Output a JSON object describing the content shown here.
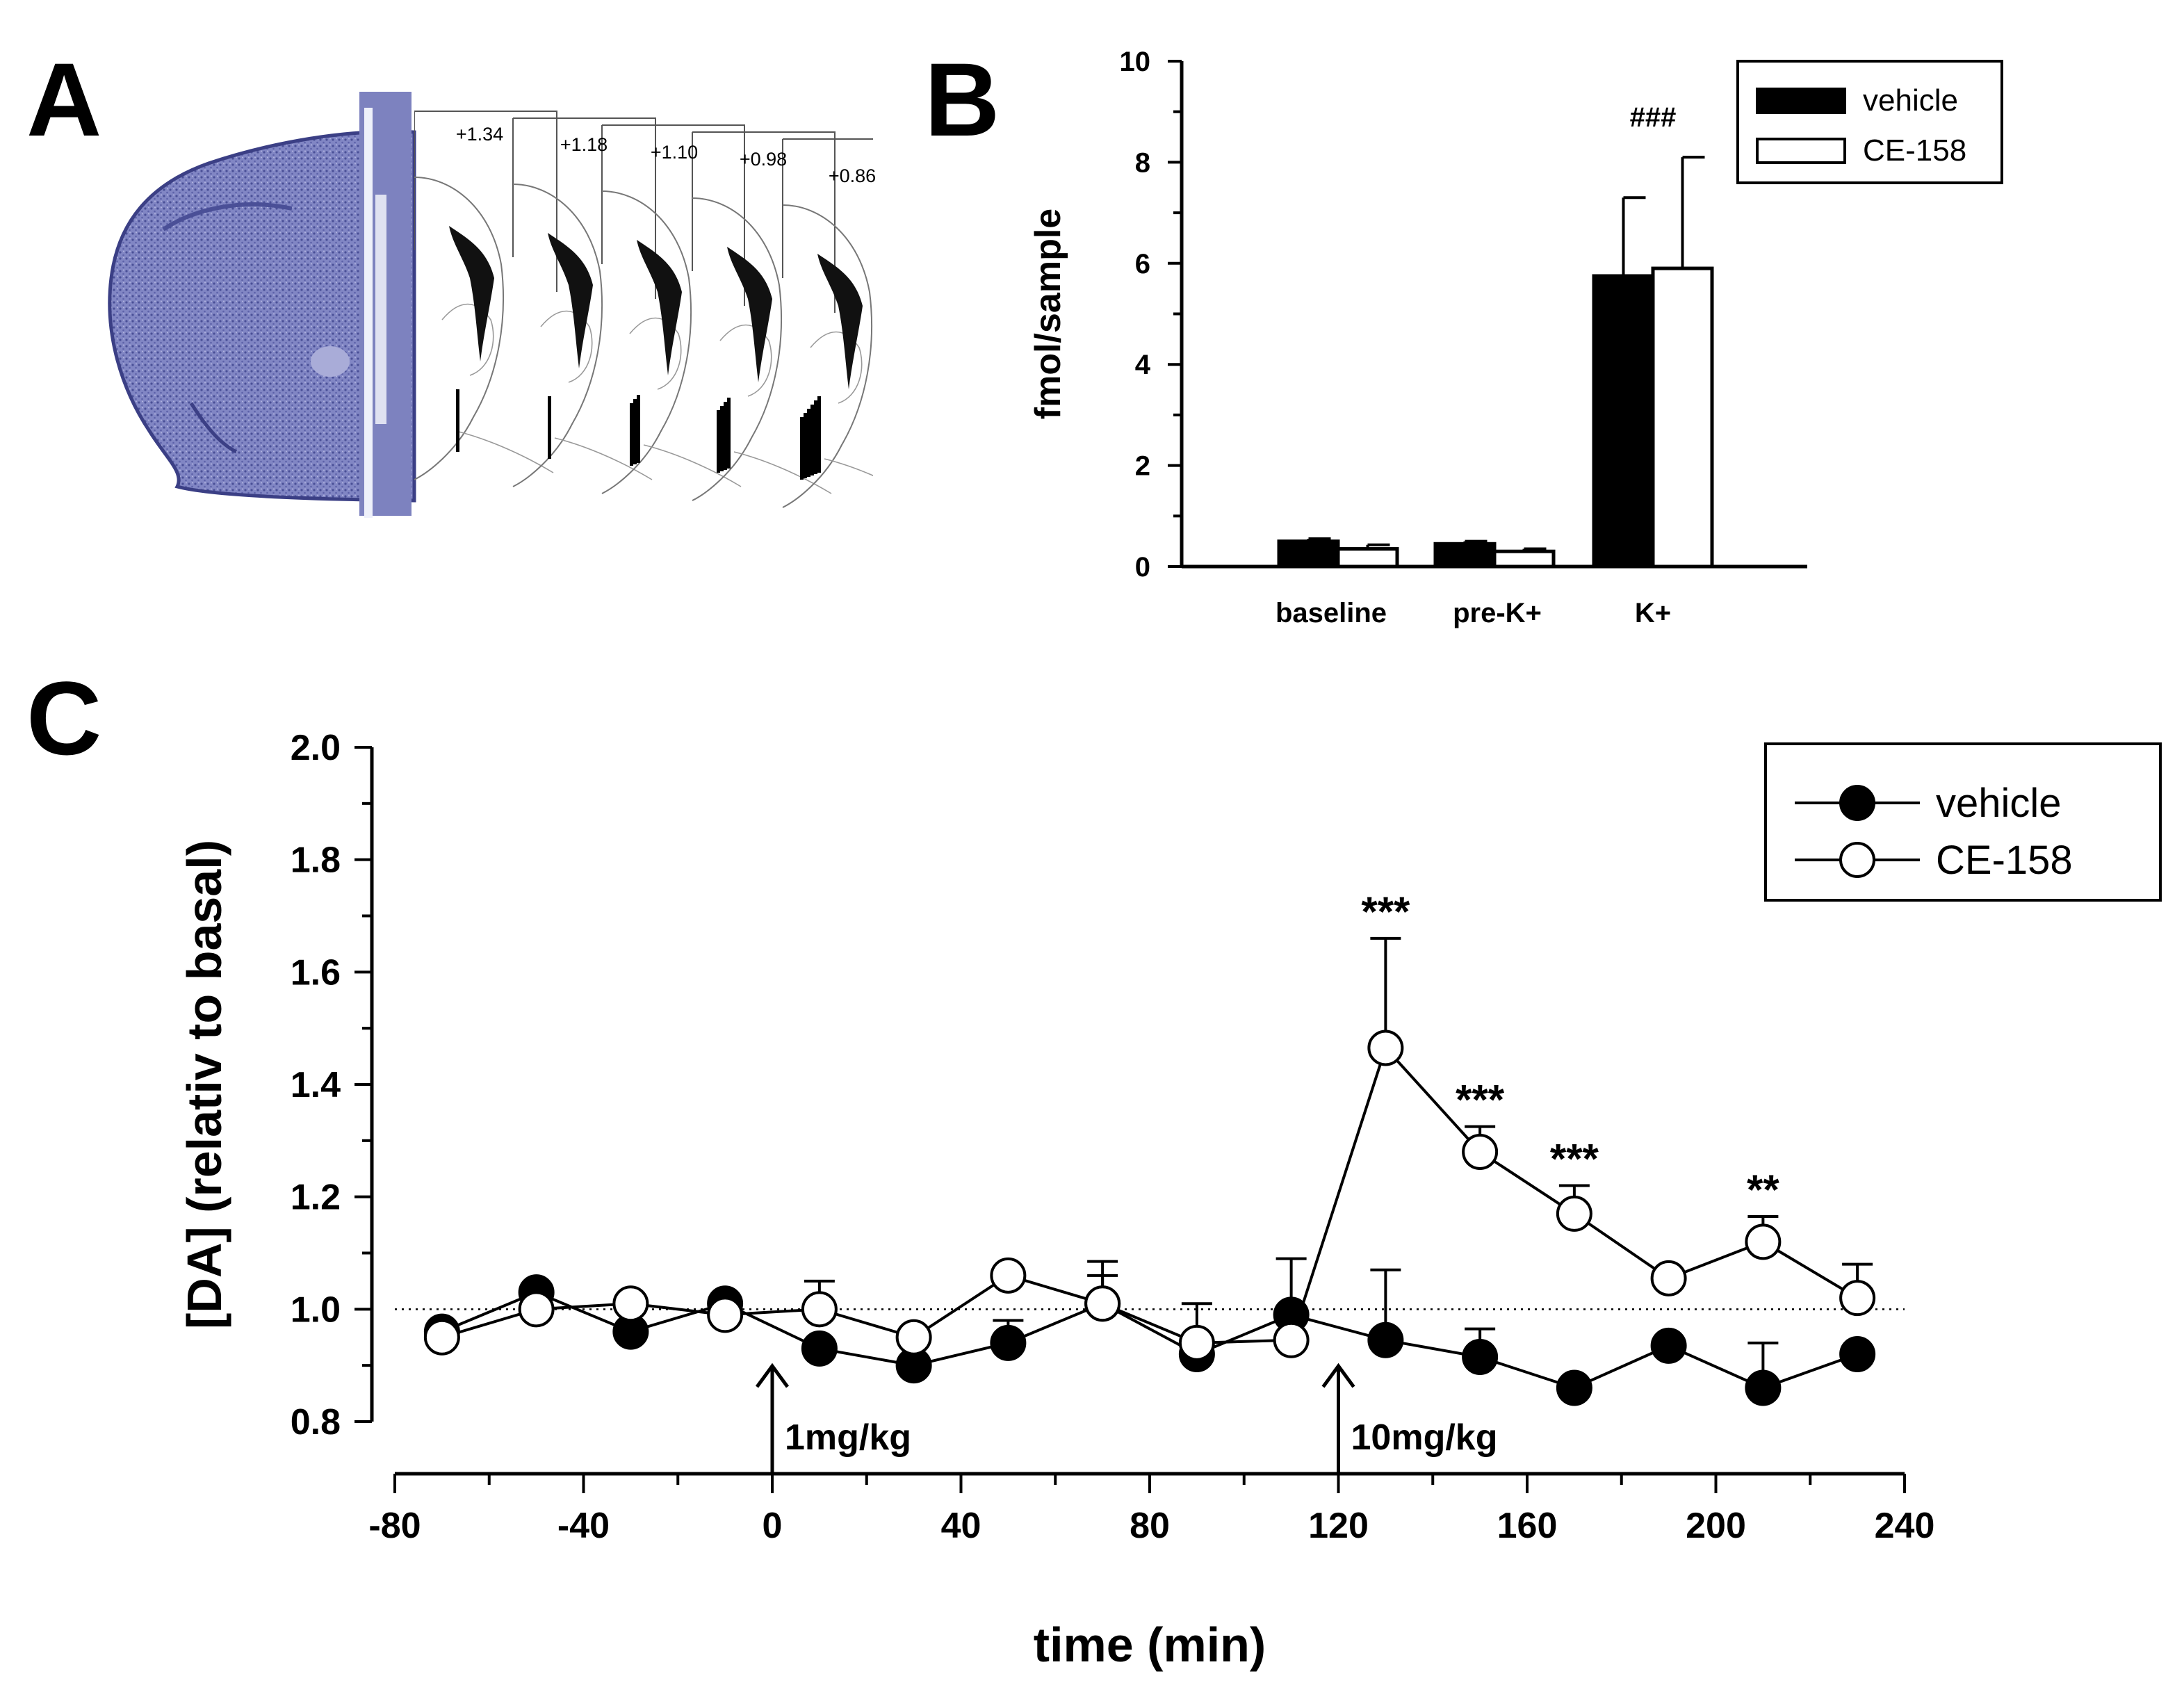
{
  "panels": {
    "a": {
      "letter": "A",
      "section_labels": [
        "+1.34",
        "+1.18",
        "+1.10",
        "+0.98",
        "+0.86"
      ]
    },
    "b": {
      "letter": "B"
    },
    "c": {
      "letter": "C"
    }
  },
  "chart_data": [
    {
      "type": "bar",
      "panel": "B",
      "ylabel": "fmol/sample",
      "xlabel": "",
      "ylim": [
        0,
        10
      ],
      "yticks": [
        0,
        2,
        4,
        6,
        8,
        10
      ],
      "categories": [
        "baseline",
        "pre-K+",
        "K+"
      ],
      "series": [
        {
          "name": "vehicle",
          "color": "#000000",
          "values": [
            0.5,
            0.45,
            5.75
          ],
          "errors": [
            0.05,
            0.05,
            1.55
          ]
        },
        {
          "name": "CE-158",
          "color": "#ffffff",
          "values": [
            0.35,
            0.3,
            5.9
          ],
          "errors": [
            0.08,
            0.05,
            2.2
          ]
        }
      ],
      "annotations": [
        {
          "text": "###",
          "category": "K+",
          "y": 8.9
        }
      ],
      "legend_position": "top-right"
    },
    {
      "type": "line",
      "panel": "C",
      "xlabel": "time (min)",
      "ylabel": "[DA] (relativ to basal)",
      "xlim": [
        -80,
        240
      ],
      "ylim": [
        0.8,
        2.0
      ],
      "xticks": [
        -80,
        -40,
        0,
        40,
        80,
        120,
        160,
        200,
        240
      ],
      "yticks": [
        0.8,
        1.0,
        1.2,
        1.4,
        1.6,
        1.8,
        2.0
      ],
      "reference_line": 1.0,
      "x": [
        -70,
        -50,
        -30,
        -10,
        10,
        30,
        50,
        70,
        90,
        110,
        130,
        150,
        170,
        190,
        210,
        230
      ],
      "series": [
        {
          "name": "vehicle",
          "marker": "filled-circle",
          "values": [
            0.96,
            1.03,
            0.96,
            1.01,
            0.93,
            0.9,
            0.94,
            1.01,
            0.92,
            0.99,
            0.945,
            0.915,
            0.86,
            0.935,
            0.86,
            0.92
          ],
          "errors": [
            0,
            0,
            0,
            0,
            0,
            0,
            0.04,
            0.05,
            0,
            0.1,
            0.125,
            0.05,
            0,
            0,
            0.08,
            0
          ]
        },
        {
          "name": "CE-158",
          "marker": "open-circle",
          "values": [
            0.95,
            1.0,
            1.01,
            0.99,
            1.0,
            0.95,
            1.06,
            1.01,
            0.94,
            0.945,
            1.465,
            1.28,
            1.17,
            1.055,
            1.12,
            1.02
          ],
          "errors": [
            0,
            0,
            0,
            0,
            0.05,
            0,
            0,
            0.075,
            0.07,
            0,
            0.195,
            0.045,
            0.05,
            0,
            0.045,
            0.06
          ]
        }
      ],
      "significance": [
        {
          "x": 130,
          "label": "***"
        },
        {
          "x": 150,
          "label": "***"
        },
        {
          "x": 170,
          "label": "***"
        },
        {
          "x": 210,
          "label": "**"
        }
      ],
      "injections": [
        {
          "x": 0,
          "label": "1mg/kg"
        },
        {
          "x": 120,
          "label": "10mg/kg"
        }
      ],
      "legend_position": "top-right"
    }
  ]
}
